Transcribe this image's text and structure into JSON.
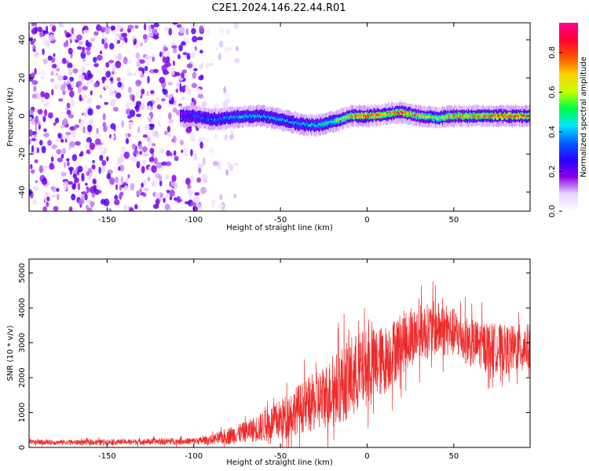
{
  "title": "C2E1.2024.146.22.44.R01",
  "chart_data": [
    {
      "type": "heatmap",
      "xlabel": "Height of straight line (km)",
      "ylabel": "Frequency (Hz)",
      "xlim": [
        -195,
        94
      ],
      "ylim": [
        -50,
        49
      ],
      "xticks": [
        -150,
        -100,
        -50,
        0,
        50
      ],
      "yticks": [
        -40,
        -20,
        0,
        20,
        40
      ],
      "grid": false,
      "colorbar": {
        "label": "Normalized spectral amplitude",
        "range": [
          0,
          0.95
        ],
        "ticks": [
          0,
          0.2,
          0.4,
          0.6,
          0.8
        ],
        "colormap": [
          "#ffffff",
          "#e8d4ff",
          "#8a00e6",
          "#2a00ff",
          "#0060ff",
          "#00e6ff",
          "#00ff40",
          "#c8ff00",
          "#ffd000",
          "#ff5000",
          "#ff0030",
          "#ff0090"
        ]
      },
      "noise_region": {
        "x": [
          -195,
          -80
        ],
        "y": [
          -50,
          49
        ],
        "typical_amplitude": 0.15
      },
      "signal_ridge": {
        "x": [
          -108,
          -100,
          -90,
          -80,
          -70,
          -60,
          -50,
          -40,
          -30,
          -20,
          -10,
          0,
          10,
          20,
          30,
          40,
          50,
          60,
          70,
          80,
          94
        ],
        "frequency": [
          0,
          0,
          -2,
          -1,
          0,
          0,
          -2,
          -4,
          -5,
          -3,
          0,
          0,
          1,
          2,
          0,
          -1,
          0,
          0,
          0,
          0,
          0
        ],
        "amplitude": [
          0.25,
          0.3,
          0.35,
          0.4,
          0.42,
          0.42,
          0.4,
          0.4,
          0.45,
          0.5,
          0.7,
          0.8,
          0.75,
          0.8,
          0.7,
          0.6,
          0.75,
          0.7,
          0.75,
          0.8,
          0.75
        ]
      }
    },
    {
      "type": "line",
      "xlabel": "Height of straight line (km)",
      "ylabel": "SNR (10 * v/v)",
      "xlim": [
        -195,
        94
      ],
      "ylim": [
        0,
        5400
      ],
      "xticks": [
        -150,
        -100,
        -50,
        0,
        50
      ],
      "yticks": [
        0,
        1000,
        2000,
        3000,
        4000,
        5000
      ],
      "color": "#ee2b2b",
      "grid": false,
      "series": [
        {
          "x": [
            -195,
            -180,
            -160,
            -140,
            -120,
            -100,
            -90,
            -80,
            -70,
            -60,
            -50,
            -40,
            -30,
            -20,
            -10,
            0,
            10,
            20,
            30,
            40,
            50,
            60,
            70,
            80,
            94
          ],
          "center": [
            150,
            150,
            150,
            160,
            170,
            180,
            220,
            330,
            450,
            600,
            800,
            1100,
            1300,
            1600,
            2000,
            2300,
            2500,
            3000,
            3300,
            3400,
            3300,
            3000,
            2900,
            2800,
            2900
          ],
          "spread": [
            70,
            70,
            80,
            80,
            90,
            100,
            130,
            250,
            300,
            450,
            600,
            700,
            850,
            1000,
            1200,
            1100,
            1000,
            900,
            800,
            800,
            700,
            700,
            700,
            700,
            650
          ]
        }
      ]
    }
  ]
}
